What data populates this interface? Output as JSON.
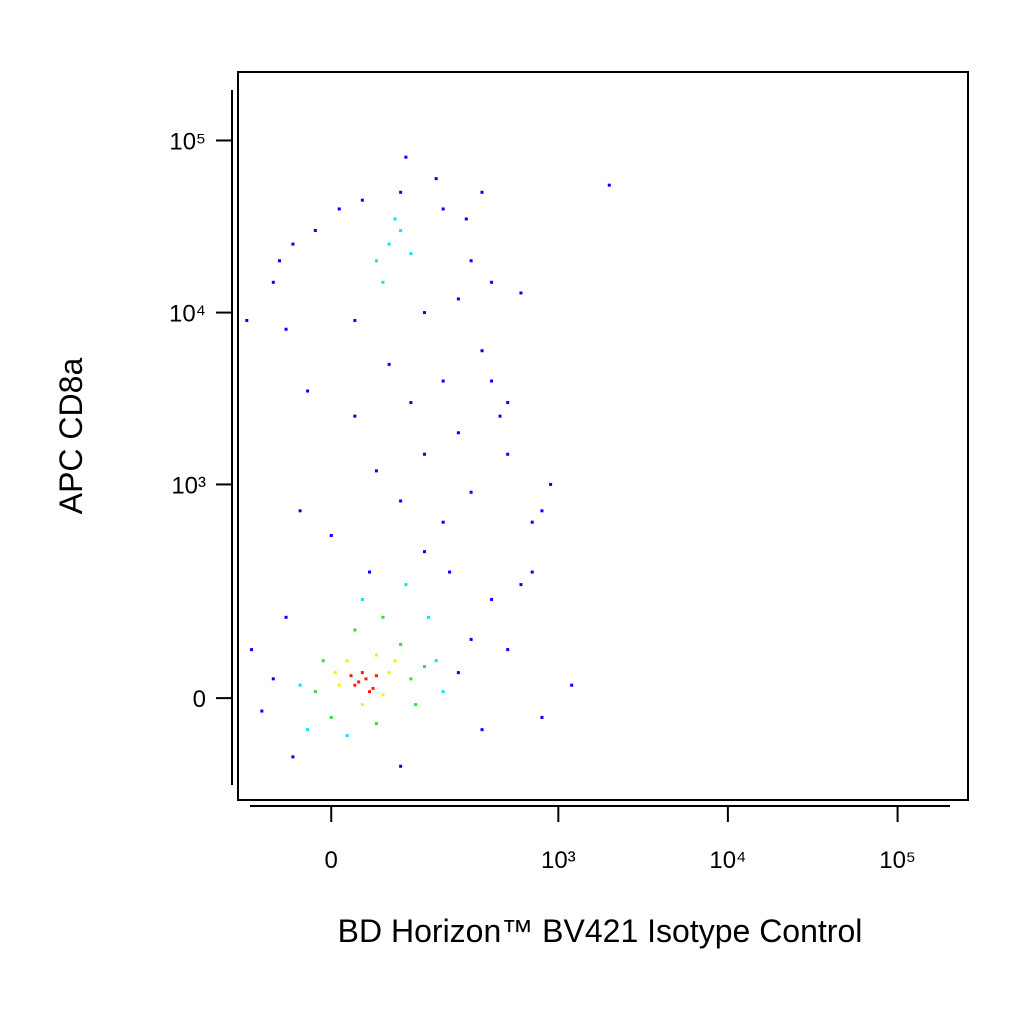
{
  "chart_data": {
    "type": "scatter",
    "x_label": "BD Horizon™ BV421 Isotype Control",
    "y_label": "APC CD8a",
    "xscale": "biexponential",
    "yscale": "biexponential",
    "xlim": [
      -150,
      260000
    ],
    "ylim": [
      -210,
      250000
    ],
    "xticks": [
      0,
      {
        "value": 1000,
        "label": "10³"
      },
      {
        "value": 10000,
        "label": "10⁴"
      },
      {
        "value": 100000,
        "label": "10⁵"
      }
    ],
    "yticks": [
      0,
      {
        "value": 1000,
        "label": "10³"
      },
      {
        "value": 10000,
        "label": "10⁴"
      },
      {
        "value": 100000,
        "label": "10⁵"
      }
    ],
    "series": [
      {
        "color": "#0000ff",
        "x": [
          -80,
          -100,
          250,
          300,
          400,
          -60,
          50,
          150,
          220,
          -50,
          100,
          350,
          500,
          600,
          700,
          1200,
          800,
          -120,
          0,
          200,
          100,
          300,
          -40,
          60,
          150,
          250,
          30,
          120,
          200,
          -30,
          80,
          350,
          -60,
          30,
          150,
          250,
          -80,
          300,
          -50,
          200,
          100,
          40,
          280,
          -20,
          400,
          180,
          110,
          2000,
          500,
          900,
          700,
          400,
          600,
          -130,
          10,
          350,
          -70,
          500,
          800,
          450
        ],
        "y": [
          30,
          -20,
          40,
          100,
          200,
          150,
          300,
          400,
          300,
          -100,
          -120,
          -50,
          80,
          250,
          300,
          20,
          -30,
          80,
          500,
          600,
          800,
          900,
          700,
          1200,
          1500,
          2000,
          2500,
          3000,
          4000,
          3500,
          5000,
          6000,
          8000,
          9000,
          10000,
          12000,
          15000,
          20000,
          25000,
          40000,
          50000,
          45000,
          35000,
          30000,
          15000,
          60000,
          80000,
          55000,
          1500,
          1000,
          600,
          4000,
          13000,
          9000,
          40000,
          50000,
          20000,
          3000,
          700,
          2500
        ]
      },
      {
        "color": "#00e5ff",
        "x": [
          -40,
          180,
          40,
          -30,
          200,
          110,
          20,
          160,
          80,
          100,
          60,
          120,
          90,
          70
        ],
        "y": [
          20,
          60,
          200,
          -50,
          10,
          250,
          -60,
          150,
          25000,
          30000,
          20000,
          22000,
          35000,
          15000
        ]
      },
      {
        "color": "#33dd33",
        "x": [
          -20,
          120,
          0,
          100,
          30,
          -10,
          130,
          60,
          70,
          150
        ],
        "y": [
          10,
          30,
          -30,
          90,
          120,
          60,
          -10,
          -40,
          150,
          50
        ]
      },
      {
        "color": "#ffee00",
        "x": [
          10,
          80,
          20,
          70,
          40,
          90,
          5,
          60
        ],
        "y": [
          20,
          40,
          60,
          5,
          -10,
          60,
          40,
          70
        ]
      },
      {
        "color": "#ff1a00",
        "x": [
          30,
          45,
          55,
          40,
          60,
          35,
          50,
          25
        ],
        "y": [
          20,
          30,
          15,
          40,
          35,
          25,
          10,
          35
        ]
      }
    ]
  }
}
